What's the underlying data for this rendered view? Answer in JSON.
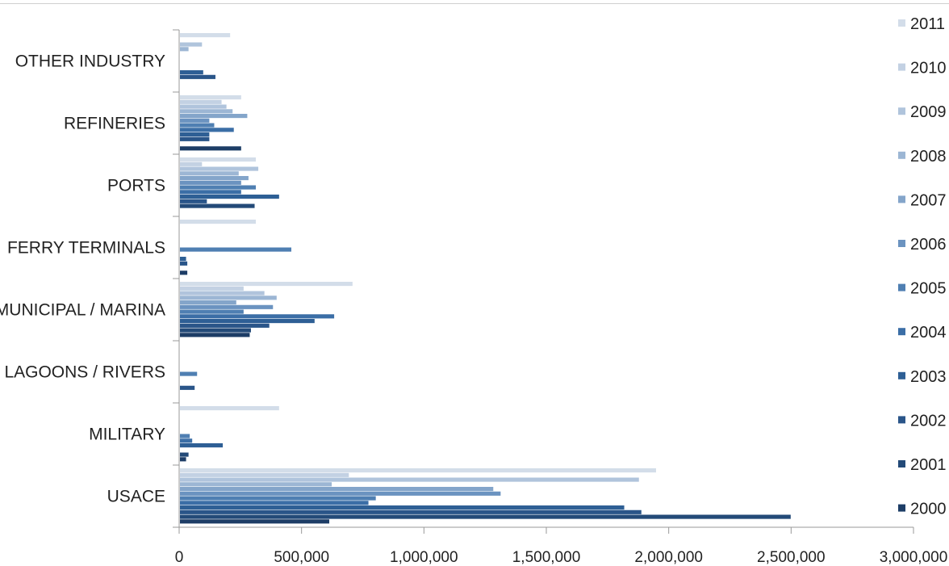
{
  "chart_data": {
    "type": "bar",
    "orientation": "horizontal",
    "title": "",
    "xlabel": "",
    "ylabel": "",
    "xlim": [
      0,
      3000000
    ],
    "x_ticks": [
      0,
      500000,
      1000000,
      1500000,
      2000000,
      2500000,
      3000000
    ],
    "x_tick_labels": [
      "0",
      "500,000",
      "1,000,000",
      "1,500,000",
      "2,000,000",
      "2,500,000",
      "3,000,000"
    ],
    "grid": false,
    "legend_position": "right",
    "categories": [
      "OTHER INDUSTRY",
      "REFINERIES",
      "PORTS",
      "FERRY TERMINALS",
      "MUNICIPAL / MARINA",
      "LAGOONS / RIVERS",
      "MILITARY",
      "USACE"
    ],
    "series": [
      {
        "name": "2011",
        "color": "#d3dde9",
        "values": [
          205000,
          250000,
          310000,
          310000,
          705000,
          0,
          405000,
          1945000
        ]
      },
      {
        "name": "2010",
        "color": "#c3d1e3",
        "values": [
          0,
          170000,
          90000,
          0,
          260000,
          0,
          0,
          690000
        ]
      },
      {
        "name": "2009",
        "color": "#b0c4dc",
        "values": [
          90000,
          190000,
          320000,
          0,
          345000,
          0,
          0,
          1875000
        ]
      },
      {
        "name": "2008",
        "color": "#9cb6d4",
        "values": [
          35000,
          215000,
          240000,
          0,
          395000,
          0,
          0,
          620000
        ]
      },
      {
        "name": "2007",
        "color": "#84a5ca",
        "values": [
          0,
          275000,
          280000,
          0,
          230000,
          0,
          0,
          1280000
        ]
      },
      {
        "name": "2006",
        "color": "#6b93c0",
        "values": [
          0,
          120000,
          250000,
          0,
          380000,
          0,
          0,
          1310000
        ]
      },
      {
        "name": "2005",
        "color": "#4f7fb2",
        "values": [
          0,
          140000,
          310000,
          455000,
          260000,
          70000,
          40000,
          800000
        ]
      },
      {
        "name": "2004",
        "color": "#3b6ea6",
        "values": [
          0,
          220000,
          250000,
          0,
          630000,
          0,
          50000,
          770000
        ]
      },
      {
        "name": "2003",
        "color": "#2e5f95",
        "values": [
          95000,
          120000,
          405000,
          25000,
          550000,
          0,
          175000,
          1815000
        ]
      },
      {
        "name": "2002",
        "color": "#2a5589",
        "values": [
          145000,
          120000,
          110000,
          30000,
          365000,
          60000,
          0,
          1885000
        ]
      },
      {
        "name": "2001",
        "color": "#234a78",
        "values": [
          0,
          0,
          305000,
          0,
          290000,
          0,
          35000,
          2495000
        ]
      },
      {
        "name": "2000",
        "color": "#1d3d66",
        "values": [
          0,
          250000,
          0,
          30000,
          285000,
          0,
          25000,
          610000
        ]
      }
    ]
  }
}
